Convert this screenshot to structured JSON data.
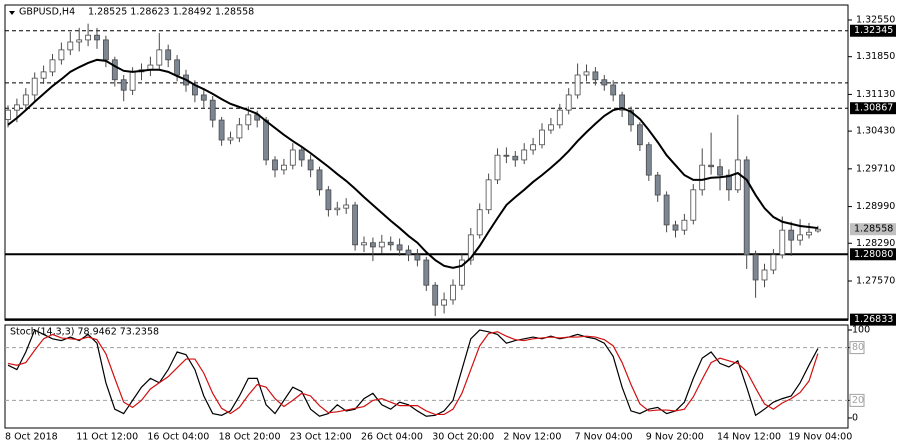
{
  "chart_data": [
    {
      "type": "candlestick",
      "title": "GBPUSD,H4",
      "subtitle": "1.28525 1.28623 1.28492 1.28558",
      "categories": [
        "8 Oct 2018",
        null,
        null,
        null,
        null,
        null,
        null,
        null,
        "11 Oct 12:00",
        null,
        null,
        null,
        null,
        null,
        null,
        null,
        "16 Oct 04:00",
        null,
        null,
        null,
        null,
        null,
        null,
        null,
        "18 Oct 20:00",
        null,
        null,
        null,
        null,
        null,
        null,
        null,
        "23 Oct 12:00",
        null,
        null,
        null,
        null,
        null,
        null,
        null,
        "26 Oct 04:00",
        null,
        null,
        null,
        null,
        null,
        null,
        null,
        "30 Oct 20:00",
        null,
        null,
        null,
        null,
        null,
        null,
        null,
        "2 Nov 12:00",
        null,
        null,
        null,
        null,
        null,
        null,
        null,
        "7 Nov 04:00",
        null,
        null,
        null,
        null,
        null,
        null,
        null,
        "9 Nov 20:00",
        null,
        null,
        null,
        null,
        null,
        null,
        null,
        "14 Nov 12:00",
        null,
        null,
        null,
        null,
        null,
        null,
        null,
        "19 Nov 04:00",
        null,
        null,
        null
      ],
      "open": [
        1.3065,
        1.3083,
        1.3093,
        1.3112,
        1.3144,
        1.3156,
        1.3179,
        1.3198,
        1.3213,
        1.3217,
        1.3226,
        1.3217,
        1.3179,
        1.3141,
        1.3121,
        1.3156,
        1.316,
        1.3169,
        1.3198,
        1.3179,
        1.315,
        1.3131,
        1.3112,
        1.3102,
        1.3064,
        1.3026,
        1.303,
        1.3055,
        1.3074,
        1.3064,
        1.2988,
        1.2969,
        1.2978,
        1.3007,
        1.2988,
        1.2969,
        1.2931,
        1.2893,
        1.2896,
        1.2902,
        1.2826,
        1.283,
        1.2822,
        1.2831,
        1.2826,
        1.2816,
        1.2807,
        1.2797,
        1.2749,
        1.2711,
        1.2721,
        1.2749,
        1.2797,
        1.2845,
        1.2893,
        1.295,
        1.2997,
        1.2995,
        1.2988,
        1.3007,
        1.3017,
        1.3045,
        1.3055,
        1.3083,
        1.3112,
        1.315,
        1.3156,
        1.3141,
        1.3131,
        1.3112,
        1.3083,
        1.3055,
        1.3017,
        1.2959,
        1.2921,
        1.2864,
        1.2854,
        1.2873,
        1.2931,
        1.2978,
        1.2975,
        1.2959,
        1.2931,
        1.2988,
        1.2807,
        1.2759,
        1.2778,
        1.2807,
        1.2854,
        1.2835,
        1.2845,
        1.28525
      ],
      "high": [
        1.3092,
        1.3105,
        1.3125,
        1.3155,
        1.3168,
        1.319,
        1.3212,
        1.3232,
        1.324,
        1.3248,
        1.324,
        1.3225,
        1.3185,
        1.315,
        1.3165,
        1.3172,
        1.3185,
        1.323,
        1.3208,
        1.3188,
        1.316,
        1.314,
        1.3125,
        1.311,
        1.307,
        1.3042,
        1.3068,
        1.309,
        1.3082,
        1.307,
        1.2995,
        1.299,
        1.302,
        1.3015,
        1.2998,
        1.2975,
        1.2938,
        1.2908,
        1.2915,
        1.2908,
        1.2842,
        1.284,
        1.2845,
        1.2842,
        1.2838,
        1.2825,
        1.2818,
        1.2803,
        1.2755,
        1.2735,
        1.276,
        1.2808,
        1.2858,
        1.2905,
        1.2962,
        1.301,
        1.3012,
        1.3005,
        1.302,
        1.303,
        1.3058,
        1.3068,
        1.3095,
        1.3125,
        1.3172,
        1.317,
        1.3165,
        1.315,
        1.314,
        1.3118,
        1.309,
        1.306,
        1.3022,
        1.2965,
        1.2928,
        1.2872,
        1.2885,
        1.2942,
        1.301,
        1.304,
        1.299,
        1.297,
        1.3074,
        1.2995,
        1.2815,
        1.279,
        1.2818,
        1.288,
        1.287,
        1.2875,
        1.2868,
        1.28623
      ],
      "low": [
        1.305,
        1.306,
        1.3085,
        1.31,
        1.3133,
        1.3148,
        1.317,
        1.3188,
        1.3195,
        1.3205,
        1.32,
        1.3165,
        1.3128,
        1.31,
        1.3112,
        1.314,
        1.3148,
        1.316,
        1.3165,
        1.3138,
        1.3118,
        1.3098,
        1.3088,
        1.305,
        1.3015,
        1.3018,
        1.3022,
        1.3045,
        1.305,
        1.2978,
        1.2955,
        1.296,
        1.297,
        1.2975,
        1.2955,
        1.292,
        1.288,
        1.2882,
        1.2885,
        1.2815,
        1.2812,
        1.2795,
        1.281,
        1.2815,
        1.2805,
        1.2795,
        1.2785,
        1.2738,
        1.269,
        1.2695,
        1.2712,
        1.274,
        1.2788,
        1.2838,
        1.2885,
        1.2942,
        1.2982,
        1.2975,
        1.298,
        1.2998,
        1.301,
        1.3038,
        1.3048,
        1.3075,
        1.3105,
        1.3138,
        1.313,
        1.312,
        1.31,
        1.307,
        1.3042,
        1.3005,
        1.2948,
        1.2908,
        1.285,
        1.284,
        1.2845,
        1.2865,
        1.292,
        1.296,
        1.293,
        1.291,
        1.2925,
        1.278,
        1.2725,
        1.2745,
        1.277,
        1.28,
        1.2805,
        1.2825,
        1.2838,
        1.28492
      ],
      "close": [
        1.3083,
        1.3093,
        1.3112,
        1.3144,
        1.3156,
        1.3179,
        1.3198,
        1.3213,
        1.3217,
        1.3226,
        1.3217,
        1.3179,
        1.3141,
        1.3121,
        1.3156,
        1.316,
        1.3169,
        1.3198,
        1.3179,
        1.315,
        1.3131,
        1.3112,
        1.3102,
        1.3064,
        1.3026,
        1.303,
        1.3055,
        1.3074,
        1.3064,
        1.2988,
        1.2969,
        1.2978,
        1.3007,
        1.2988,
        1.2969,
        1.2931,
        1.2893,
        1.2896,
        1.2902,
        1.2826,
        1.283,
        1.2822,
        1.2831,
        1.2826,
        1.2816,
        1.2807,
        1.2797,
        1.2749,
        1.2711,
        1.2721,
        1.2749,
        1.2797,
        1.2845,
        1.2893,
        1.295,
        1.2997,
        1.2995,
        1.2988,
        1.3007,
        1.3017,
        1.3045,
        1.3055,
        1.3083,
        1.3112,
        1.315,
        1.3156,
        1.3141,
        1.3131,
        1.3112,
        1.3083,
        1.3055,
        1.3017,
        1.2959,
        1.2921,
        1.2864,
        1.2854,
        1.2873,
        1.2931,
        1.2978,
        1.2975,
        1.2959,
        1.2931,
        1.2988,
        1.2807,
        1.2759,
        1.2778,
        1.2807,
        1.2854,
        1.2835,
        1.2845,
        1.285,
        1.28558
      ],
      "up_color": "#ffffff",
      "down_color": "#7d8793",
      "wick_color": "#4a4a4a",
      "overlay": {
        "color": "#000000",
        "values": [
          1.3055,
          1.3068,
          1.3083,
          1.3099,
          1.3114,
          1.3129,
          1.3142,
          1.3156,
          1.3165,
          1.3173,
          1.3179,
          1.3177,
          1.3167,
          1.3158,
          1.3156,
          1.3158,
          1.316,
          1.316,
          1.3156,
          1.3148,
          1.3141,
          1.3131,
          1.3123,
          1.3114,
          1.3104,
          1.3095,
          1.3089,
          1.3083,
          1.3076,
          1.3062,
          1.3049,
          1.3036,
          1.3024,
          1.3013,
          1.3001,
          1.2988,
          1.2975,
          1.2961,
          1.2948,
          1.2933,
          1.2917,
          1.2902,
          1.2887,
          1.2872,
          1.2858,
          1.2843,
          1.283,
          1.2812,
          1.2797,
          1.2786,
          1.2782,
          1.2786,
          1.2801,
          1.2824,
          1.2851,
          1.2877,
          1.2902,
          1.2917,
          1.2931,
          1.2946,
          1.2959,
          1.2973,
          1.2988,
          1.3005,
          1.3024,
          1.3041,
          1.3057,
          1.3072,
          1.3083,
          1.3087,
          1.308,
          1.3066,
          1.3045,
          1.3022,
          1.2997,
          1.2978,
          1.2959,
          1.295,
          1.295,
          1.2954,
          1.2955,
          1.2957,
          1.2963,
          1.295,
          1.2921,
          1.2896,
          1.2879,
          1.287,
          1.2866,
          1.2862,
          1.286,
          1.2858
        ]
      },
      "ylim": [
        1.26826,
        1.32836
      ],
      "yticks": [
        {
          "value": 1.3255,
          "label": "1.32550"
        },
        {
          "value": 1.3185,
          "label": "1.31850"
        },
        {
          "value": 1.3113,
          "label": "1.31130"
        },
        {
          "value": 1.3043,
          "label": "1.30430"
        },
        {
          "value": 1.2971,
          "label": "1.29710"
        },
        {
          "value": 1.2899,
          "label": "1.28990"
        },
        {
          "value": 1.2829,
          "label": "1.28290"
        },
        {
          "value": 1.2757,
          "label": "1.27570"
        }
      ],
      "levels": [
        {
          "value": 1.32345,
          "label": "1.32345",
          "style": "dashed",
          "color": "#000000"
        },
        {
          "value": 1.3135,
          "style": "dashed",
          "color": "#000000"
        },
        {
          "value": 1.30867,
          "label": "1.30867",
          "style": "dashed",
          "color": "#000000"
        },
        {
          "value": 1.2808,
          "label": "1.28080",
          "style": "solid",
          "color": "#000000"
        },
        {
          "value": 1.26833,
          "label": "1.26833",
          "style": "thick",
          "color": "#000000"
        }
      ],
      "last_price": {
        "value": 1.28558,
        "label": "1.28558",
        "color": "#c0c0c0"
      }
    },
    {
      "type": "line",
      "title": "Stoch(14,3,3) 78.9462 73.2358",
      "series": [
        {
          "color": "#000000",
          "values": [
            60,
            55,
            75,
            100,
            95,
            90,
            88,
            92,
            88,
            95,
            85,
            40,
            10,
            5,
            20,
            35,
            45,
            40,
            55,
            75,
            72,
            55,
            25,
            5,
            3,
            8,
            25,
            45,
            45,
            15,
            5,
            20,
            35,
            30,
            10,
            2,
            5,
            15,
            8,
            10,
            22,
            28,
            15,
            10,
            18,
            15,
            8,
            2,
            3,
            8,
            20,
            55,
            90,
            100,
            98,
            95,
            85,
            88,
            90,
            92,
            90,
            93,
            90,
            92,
            95,
            92,
            90,
            85,
            70,
            35,
            8,
            5,
            10,
            12,
            5,
            8,
            18,
            45,
            68,
            75,
            62,
            58,
            65,
            35,
            3,
            10,
            18,
            22,
            25,
            40,
            60,
            78.9462
          ]
        },
        {
          "color": "#d01010",
          "values": [
            62,
            60,
            63,
            77,
            90,
            95,
            91,
            90,
            89,
            92,
            89,
            73,
            45,
            18,
            12,
            20,
            33,
            40,
            47,
            57,
            67,
            67,
            51,
            28,
            11,
            5,
            12,
            26,
            38,
            35,
            22,
            13,
            20,
            28,
            25,
            14,
            6,
            7,
            9,
            11,
            13,
            20,
            22,
            18,
            14,
            14,
            14,
            8,
            4,
            4,
            10,
            28,
            55,
            82,
            96,
            98,
            93,
            89,
            88,
            90,
            91,
            92,
            91,
            92,
            92,
            93,
            92,
            89,
            82,
            63,
            38,
            16,
            8,
            9,
            9,
            8,
            10,
            24,
            44,
            63,
            68,
            65,
            62,
            53,
            34,
            16,
            10,
            17,
            22,
            29,
            42,
            73.2358
          ]
        }
      ],
      "ylim": [
        -11.4,
        105.7
      ],
      "yticks": [
        0,
        20,
        80,
        100
      ],
      "levels": [
        20,
        80
      ],
      "level_color": "#a0a0a0"
    }
  ]
}
